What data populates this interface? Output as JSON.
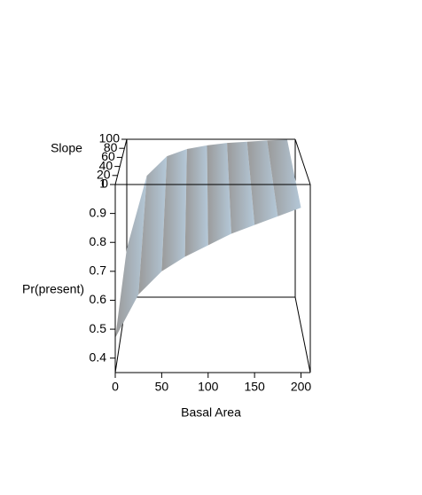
{
  "chart_data": {
    "type": "surface",
    "x_label": "Basal Area",
    "z_label": "Pr(present)",
    "y_label": "Slope",
    "x": [
      0,
      25,
      50,
      75,
      100,
      125,
      150,
      175,
      200
    ],
    "series": [
      {
        "name": "Slope 0",
        "slope": 0,
        "values": [
          0.47,
          0.62,
          0.7,
          0.75,
          0.79,
          0.83,
          0.86,
          0.89,
          0.92
        ]
      },
      {
        "name": "Slope 100",
        "slope": 100,
        "values": [
          0.55,
          0.85,
          0.93,
          0.96,
          0.975,
          0.985,
          0.99,
          0.995,
          0.998
        ]
      }
    ],
    "color": [
      "#9a9a9a",
      "#b4c8d8"
    ],
    "xlim": [
      0,
      210
    ],
    "xticks": [
      0,
      50,
      100,
      150,
      200
    ],
    "ylim": [
      0,
      100
    ],
    "yticks": [
      0,
      20,
      40,
      60,
      80,
      100
    ],
    "zlim": [
      0.35,
      1
    ],
    "zticks": [
      0.4,
      0.5,
      0.6,
      0.7,
      0.8,
      0.9,
      1
    ]
  }
}
